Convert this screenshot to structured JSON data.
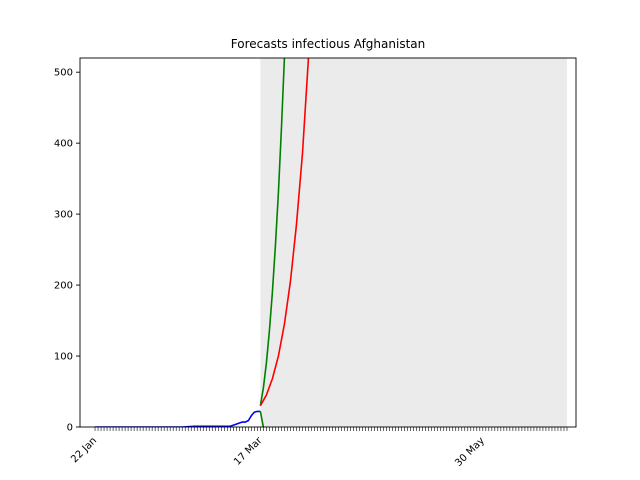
{
  "chart_data": {
    "type": "line",
    "title": "Forecasts infectious Afghanistan",
    "xlabel": "",
    "ylabel": "",
    "x_axis": {
      "type": "date",
      "range": [
        "2020-01-17",
        "2020-06-30"
      ],
      "tick_dates_start": "2020-01-22",
      "tick_dates_end": "2020-06-27",
      "labeled_ticks": [
        {
          "date": "2020-01-22",
          "label": "22 Jan"
        },
        {
          "date": "2020-03-17",
          "label": "17 Mar"
        },
        {
          "date": "2020-05-30",
          "label": "30 May"
        }
      ]
    },
    "y_axis": {
      "range": [
        0,
        520
      ],
      "ticks": [
        0,
        100,
        200,
        300,
        400,
        500
      ]
    },
    "grid": false,
    "shaded_region": {
      "from": "2020-03-17",
      "to": "2020-06-27",
      "color": "#ebebeb"
    },
    "series": [
      {
        "color": "#0000ff",
        "points": [
          [
            "2020-01-22",
            0
          ],
          [
            "2020-02-01",
            0
          ],
          [
            "2020-02-10",
            0
          ],
          [
            "2020-02-20",
            0
          ],
          [
            "2020-02-24",
            1
          ],
          [
            "2020-03-01",
            1
          ],
          [
            "2020-03-07",
            1
          ],
          [
            "2020-03-09",
            4
          ],
          [
            "2020-03-11",
            7
          ],
          [
            "2020-03-12",
            7
          ],
          [
            "2020-03-13",
            9
          ],
          [
            "2020-03-14",
            16
          ],
          [
            "2020-03-15",
            21
          ],
          [
            "2020-03-16",
            22
          ],
          [
            "2020-03-17",
            22
          ]
        ]
      },
      {
        "color": "#008000",
        "points": [
          [
            "2020-03-17",
            30
          ],
          [
            "2020-03-18",
            55
          ],
          [
            "2020-03-19",
            90
          ],
          [
            "2020-03-20",
            135
          ],
          [
            "2020-03-21",
            190
          ],
          [
            "2020-03-22",
            255
          ],
          [
            "2020-03-23",
            330
          ],
          [
            "2020-03-24",
            420
          ],
          [
            "2020-03-25",
            520
          ]
        ]
      },
      {
        "color": "#008000",
        "points": [
          [
            "2020-03-17",
            22
          ],
          [
            "2020-03-18",
            0
          ]
        ]
      },
      {
        "color": "#ff0000",
        "points": [
          [
            "2020-03-17",
            30
          ],
          [
            "2020-03-19",
            45
          ],
          [
            "2020-03-21",
            68
          ],
          [
            "2020-03-23",
            100
          ],
          [
            "2020-03-25",
            145
          ],
          [
            "2020-03-27",
            205
          ],
          [
            "2020-03-29",
            285
          ],
          [
            "2020-03-31",
            385
          ],
          [
            "2020-04-02",
            520
          ]
        ]
      }
    ]
  }
}
